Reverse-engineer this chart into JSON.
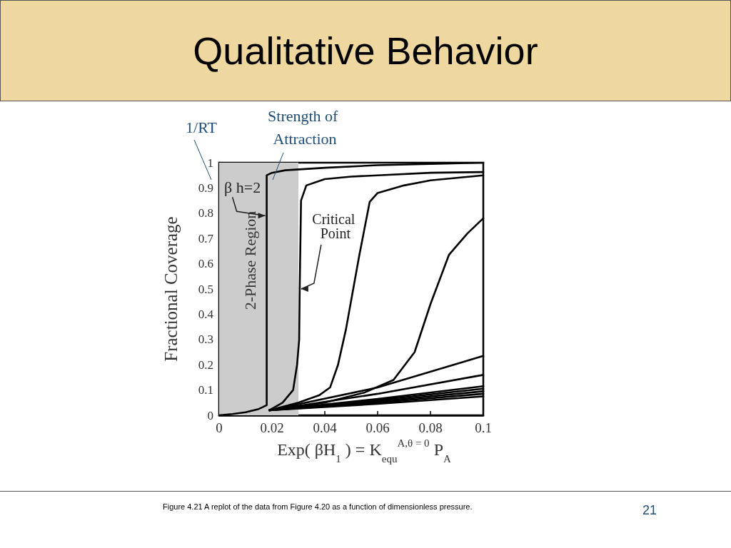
{
  "chart_data": {
    "type": "line",
    "title": "Qualitative Behavior",
    "xlabel": "Exp( βH$_{1}$ ) = K$_{equ}$$^{A,θ = 0}$ P$_{A}$",
    "ylabel": "Fractional Coverage",
    "xlim": [
      0,
      0.1
    ],
    "xticks": [
      0,
      0.02,
      0.04,
      0.06,
      0.08,
      0.1
    ],
    "ylim": [
      0,
      1
    ],
    "yticks": [
      0,
      0.1,
      0.2,
      0.3,
      0.4,
      0.5,
      0.6,
      0.7,
      0.8,
      0.9,
      1
    ],
    "marker": "none",
    "line_style": "solid",
    "bands": [
      {
        "axis": "x",
        "from": 0,
        "to": 0.03,
        "label": "2-Phase Region",
        "color": "#cccccc"
      }
    ],
    "series": [
      {
        "color": "#000000",
        "x": [
          0,
          0.005,
          0.01,
          0.015,
          0.018,
          0.018,
          0.02,
          0.025,
          0.04,
          0.06,
          0.08,
          0.1
        ],
        "values": [
          0,
          0.005,
          0.012,
          0.025,
          0.04,
          0.95,
          0.96,
          0.97,
          0.98,
          0.99,
          0.995,
          1
        ]
      },
      {
        "color": "#000000",
        "x": [
          0.019,
          0.024,
          0.028,
          0.0295,
          0.0303,
          0.0305,
          0.031,
          0.033,
          0.04,
          0.05,
          0.06,
          0.08,
          0.1
        ],
        "values": [
          0.02,
          0.05,
          0.1,
          0.2,
          0.3,
          0.5,
          0.85,
          0.91,
          0.935,
          0.945,
          0.95,
          0.96,
          0.963
        ]
      },
      {
        "color": "#000000",
        "x": [
          0.019,
          0.03,
          0.038,
          0.042,
          0.045,
          0.048,
          0.053,
          0.057,
          0.06,
          0.07,
          0.08,
          0.1
        ],
        "values": [
          0.02,
          0.05,
          0.08,
          0.11,
          0.2,
          0.34,
          0.63,
          0.845,
          0.88,
          0.91,
          0.93,
          0.95
        ]
      },
      {
        "color": "#000000",
        "x": [
          0.019,
          0.04,
          0.055,
          0.066,
          0.074,
          0.08,
          0.087,
          0.094,
          0.1
        ],
        "values": [
          0.02,
          0.05,
          0.09,
          0.14,
          0.25,
          0.44,
          0.635,
          0.72,
          0.78
        ]
      },
      {
        "color": "#000000",
        "x": [
          0.019,
          0.06,
          0.1
        ],
        "values": [
          0.02,
          0.11,
          0.235
        ]
      },
      {
        "color": "#000000",
        "x": [
          0.019,
          0.06,
          0.1
        ],
        "values": [
          0.02,
          0.085,
          0.16
        ]
      },
      {
        "color": "#000000",
        "x": [
          0.019,
          0.06,
          0.1
        ],
        "values": [
          0.02,
          0.065,
          0.115
        ]
      },
      {
        "color": "#000000",
        "x": [
          0.019,
          0.06,
          0.1
        ],
        "values": [
          0.02,
          0.06,
          0.105
        ]
      },
      {
        "color": "#000000",
        "x": [
          0.019,
          0.06,
          0.1
        ],
        "values": [
          0.02,
          0.055,
          0.095
        ]
      },
      {
        "color": "#000000",
        "x": [
          0.019,
          0.06,
          0.1
        ],
        "values": [
          0.02,
          0.05,
          0.085
        ]
      },
      {
        "color": "#000000",
        "x": [
          0.019,
          0.06,
          0.1
        ],
        "values": [
          0.02,
          0.045,
          0.075
        ]
      }
    ],
    "annotations": [
      "1/RT",
      "Strength of Attraction",
      {
        "text": "β h=2",
        "x": 0.018,
        "y": 0.79
      },
      {
        "text": "Critical Point",
        "x": 0.0305,
        "y": 0.5
      },
      "Figure 4.21  A replot of the data from Figure 4.20 as a function of dimensionless pressure.",
      "21"
    ]
  }
}
